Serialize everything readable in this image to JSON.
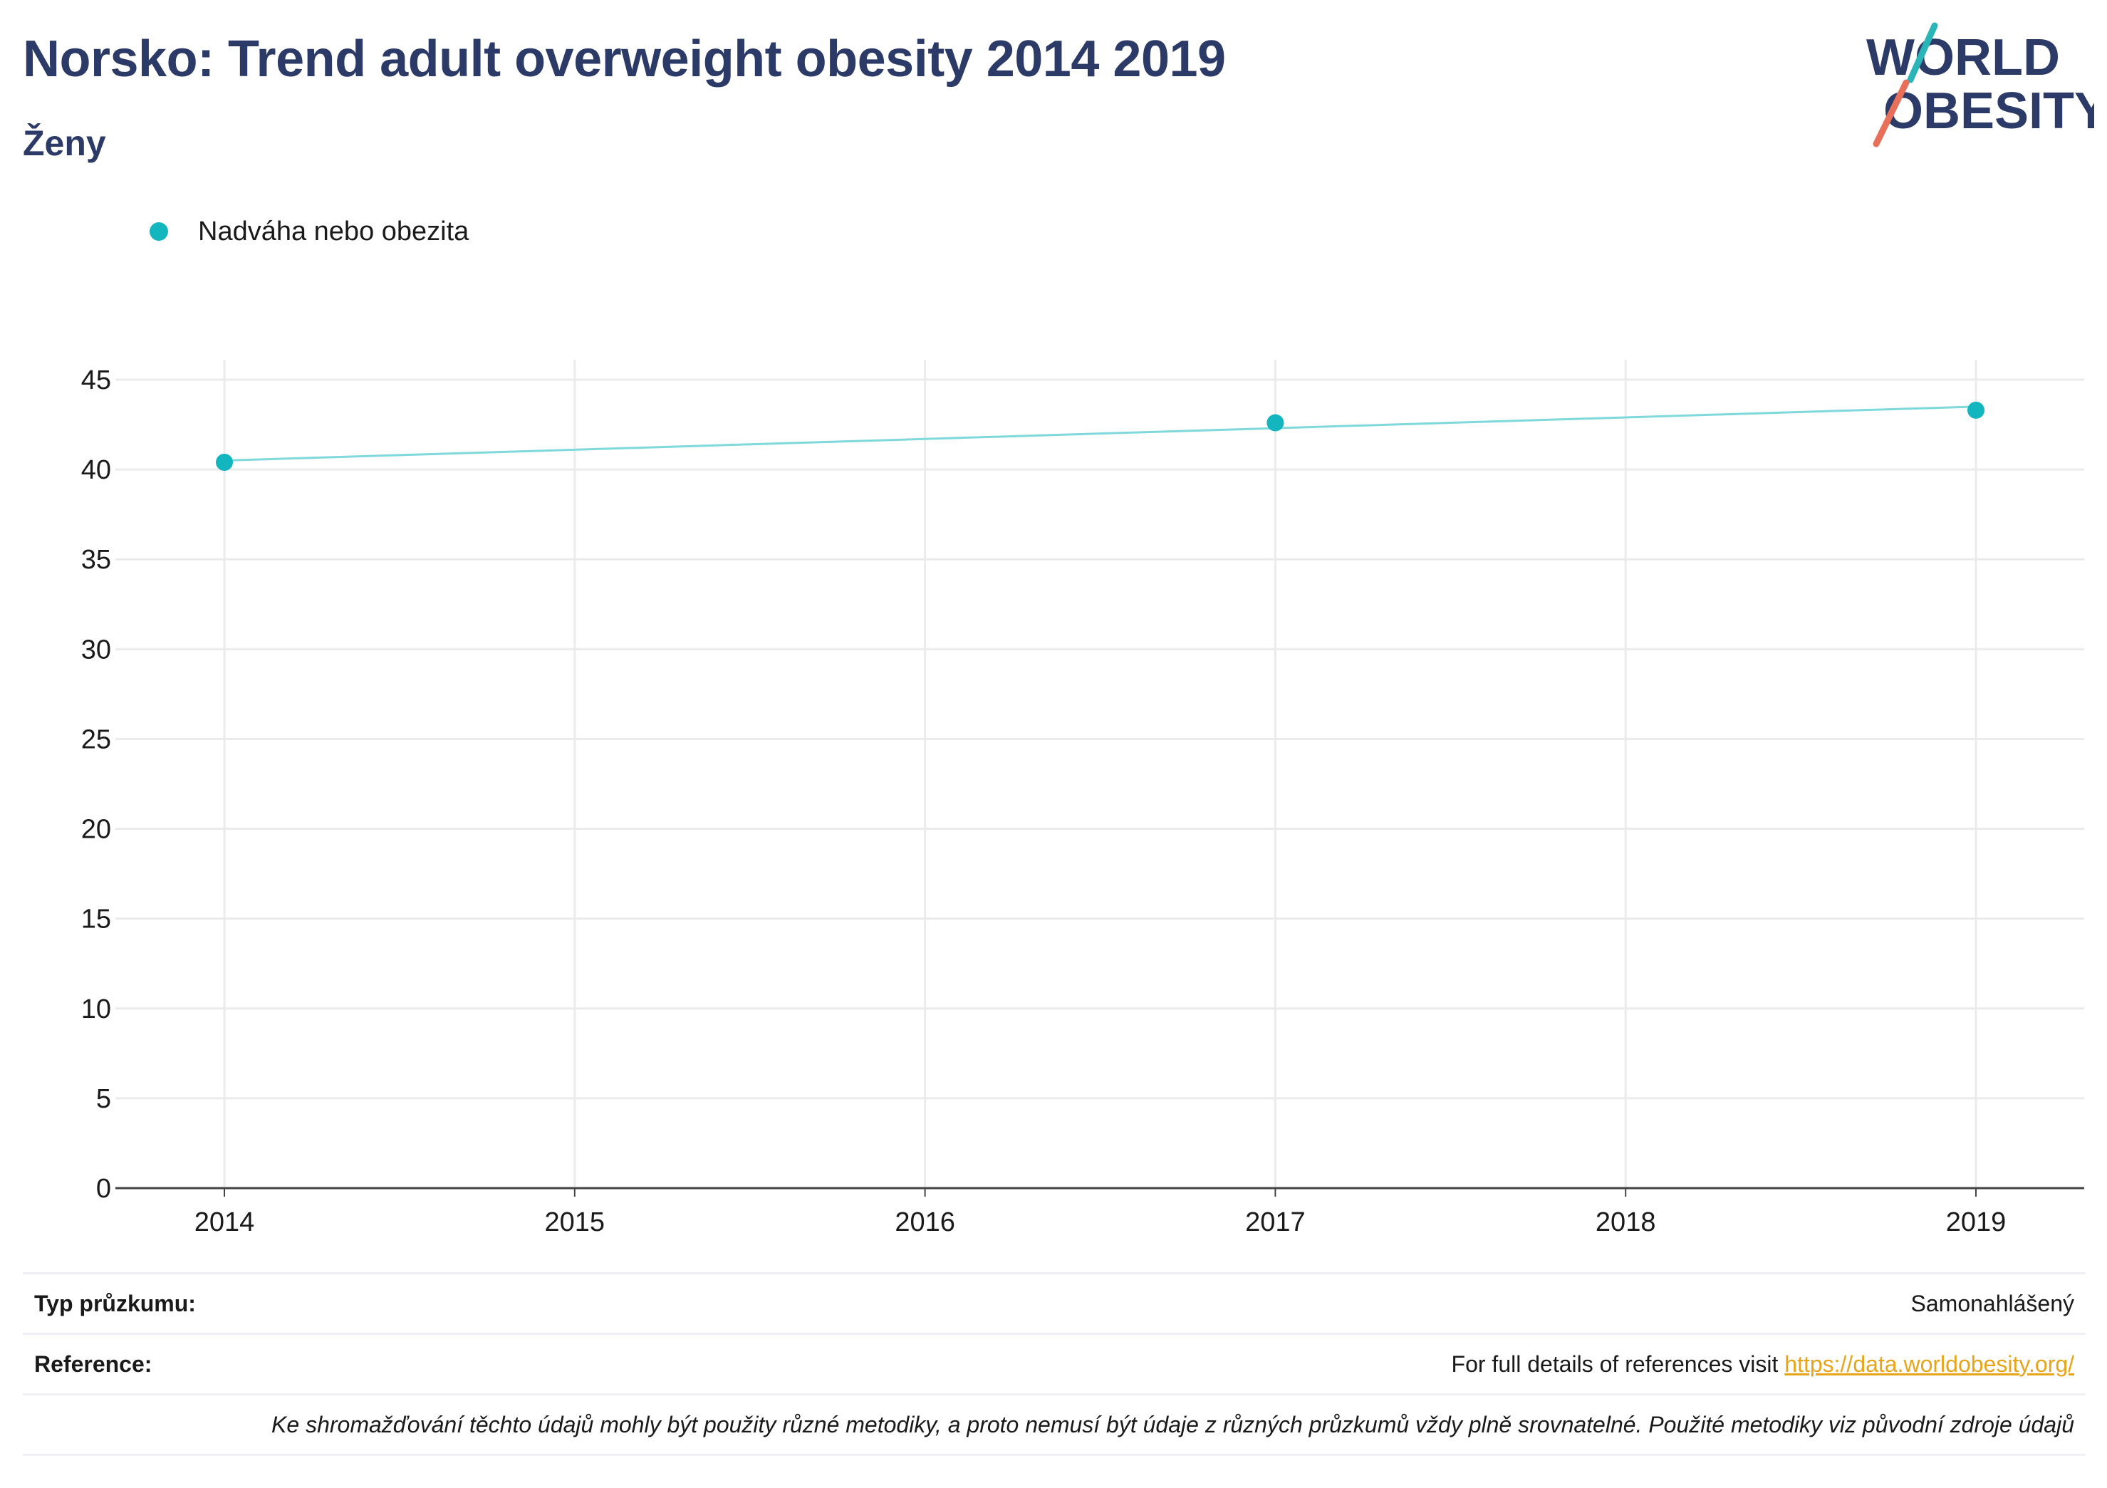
{
  "header": {
    "title": "Norsko: Trend adult overweight obesity 2014 2019",
    "subtitle": "Ženy"
  },
  "logo": {
    "line1": "WORLD",
    "line2": "OBESITY",
    "accent_teal": "#2bb5b8",
    "accent_coral": "#e8705b"
  },
  "legend": {
    "items": [
      {
        "label": "Nadváha nebo obezita",
        "color": "#13b5bf"
      }
    ]
  },
  "chart_data": {
    "type": "scatter",
    "x_ticks": [
      "2014",
      "2015",
      "2016",
      "2017",
      "2018",
      "2019"
    ],
    "y_ticks": [
      "0",
      "5",
      "10",
      "15",
      "20",
      "25",
      "30",
      "35",
      "40",
      "45"
    ],
    "ylim": [
      0,
      45
    ],
    "xlim": [
      2014,
      2019
    ],
    "series": [
      {
        "name": "Nadváha nebo obezita",
        "color": "#13b5bf",
        "x": [
          2014,
          2017,
          2019
        ],
        "y": [
          40.4,
          42.6,
          43.3
        ]
      }
    ],
    "trendline": {
      "color": "#7fd9dc",
      "x": [
        2014,
        2019
      ],
      "y": [
        40.5,
        43.5
      ]
    },
    "grid": true
  },
  "footer": {
    "survey_type_label": "Typ průzkumu:",
    "survey_type_value": "Samonahlášený",
    "reference_label": "Reference:",
    "reference_text": "For full details of references visit ",
    "reference_link": "https://data.worldobesity.org/",
    "note": "Ke shromažďování těchto údajů mohly být použity různé metodiky, a proto nemusí být údaje z různých průzkumů vždy plně srovnatelné. Použité metodiky viz původní zdroje údajů"
  }
}
